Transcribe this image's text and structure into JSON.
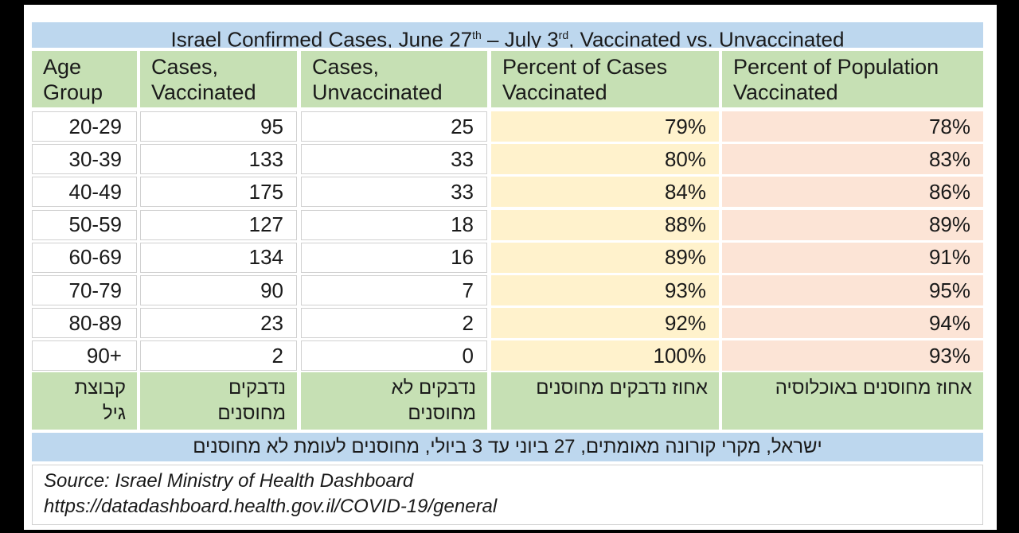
{
  "table": {
    "title": [
      "Israel Confirmed Cases, June 27",
      "th",
      " – July 3",
      "rd",
      ", Vaccinated vs. Unvaccinated"
    ],
    "header": [
      "Age\nGroup",
      "Cases,\nVaccinated",
      "Cases,\nUnvaccinated",
      "Percent of Cases\nVaccinated",
      "Percent of Population\nVaccinated"
    ],
    "rows": [
      [
        "20-29",
        95,
        25,
        "79%",
        "78%"
      ],
      [
        "30-39",
        133,
        33,
        "80%",
        "83%"
      ],
      [
        "40-49",
        175,
        33,
        "84%",
        "86%"
      ],
      [
        "50-59",
        127,
        18,
        "88%",
        "89%"
      ],
      [
        "60-69",
        134,
        16,
        "89%",
        "91%"
      ],
      [
        "70-79",
        90,
        7,
        "93%",
        "95%"
      ],
      [
        "80-89",
        23,
        2,
        "92%",
        "94%"
      ],
      [
        "90+",
        2,
        0,
        "100%",
        "93%"
      ]
    ],
    "hebrew_header": [
      "קבוצת\nגיל",
      "נדבקים\nמחוסנים",
      "נדבקים לא\nמחוסנים",
      "אחוז נדבקים מחוסנים",
      "אחוז מחוסנים באוכלוסיה"
    ],
    "hebrew_title": "ישראל, מקרי קורונה מאומתים, 27 ביוני עד 3 ביולי, מחוסנים לעומת לא מחוסנים",
    "source": [
      "Source: Israel Ministry of Health Dashboard",
      "https://datadashboard.health.gov.il/COVID-19/general"
    ]
  }
}
